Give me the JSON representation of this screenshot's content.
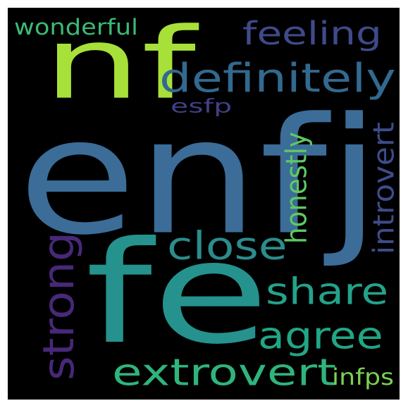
{
  "words": [
    {
      "id": "enfj",
      "text": "enfj",
      "color": "#3b6d98"
    },
    {
      "id": "fe",
      "text": "fe",
      "color": "#25928d"
    },
    {
      "id": "nf",
      "text": "nf",
      "color": "#a8e03a"
    },
    {
      "id": "definitely",
      "text": "definitely",
      "color": "#32698f"
    },
    {
      "id": "feeling",
      "text": "feeling",
      "color": "#3f4a8a"
    },
    {
      "id": "wonderful",
      "text": "wonderful",
      "color": "#3bbb75"
    },
    {
      "id": "esfp",
      "text": "esfp",
      "color": "#423f85"
    },
    {
      "id": "close",
      "text": "close",
      "color": "#2c8c8c"
    },
    {
      "id": "share",
      "text": "share",
      "color": "#23a389"
    },
    {
      "id": "agree",
      "text": "agree",
      "color": "#21a685"
    },
    {
      "id": "extrovert",
      "text": "extrovert",
      "color": "#2fb47c"
    },
    {
      "id": "infps",
      "text": "infps",
      "color": "#7ad151"
    },
    {
      "id": "strong",
      "text": "strong",
      "color": "#482878"
    },
    {
      "id": "honestly",
      "text": "honestly",
      "color": "#5ec962"
    },
    {
      "id": "introvert",
      "text": "introvert",
      "color": "#3e4c8a"
    }
  ]
}
